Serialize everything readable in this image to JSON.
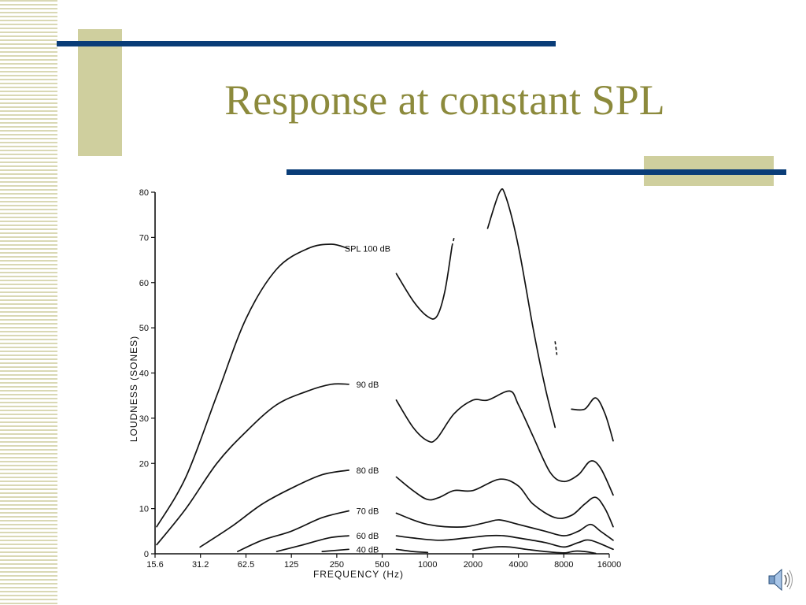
{
  "slide": {
    "title": "Response at constant SPL",
    "colors": {
      "title": "#8c8a3c",
      "rule": "#0a3d78",
      "accent_block": "#cfcf9e",
      "stripes": "#d9d8b4"
    },
    "icons": [
      "speaker-icon"
    ]
  },
  "chart_data": {
    "type": "line",
    "title": "",
    "xlabel": "FREQUENCY (Hz)",
    "ylabel": "LOUDNESS (SONES)",
    "x_scale": "log2",
    "x_ticks": [
      "15.6",
      "31.2",
      "62.5",
      "125",
      "250",
      "500",
      "1000",
      "2000",
      "4000",
      "8000",
      "16000"
    ],
    "x_tick_values": [
      15.6,
      31.2,
      62.5,
      125,
      250,
      500,
      1000,
      2000,
      4000,
      8000,
      16000
    ],
    "y_ticks": [
      "0",
      "10",
      "20",
      "30",
      "40",
      "50",
      "60",
      "70",
      "80"
    ],
    "ylim": [
      0,
      80
    ],
    "grid": false,
    "series": [
      {
        "name": "SPL 100 dB",
        "segments": [
          [
            [
              16,
              6
            ],
            [
              25,
              17
            ],
            [
              40,
              35
            ],
            [
              62.5,
              52
            ],
            [
              100,
              63
            ],
            [
              160,
              67.5
            ],
            [
              230,
              68.5
            ],
            [
              300,
              67.5
            ]
          ],
          [
            [
              620,
              62
            ],
            [
              800,
              56
            ],
            [
              1000,
              52.5
            ],
            [
              1150,
              52.5
            ],
            [
              1300,
              58
            ],
            [
              1450,
              68
            ]
          ],
          [
            [
              2500,
              72
            ],
            [
              3000,
              80
            ],
            [
              3300,
              79
            ],
            [
              4000,
              68
            ],
            [
              5000,
              50
            ],
            [
              6000,
              37
            ],
            [
              7000,
              28
            ]
          ],
          [
            [
              9000,
              32
            ],
            [
              11000,
              32
            ],
            [
              13000,
              34.5
            ],
            [
              15000,
              31
            ],
            [
              17000,
              25
            ]
          ]
        ],
        "dashed": [
          [
            [
              1450,
              68
            ],
            [
              1500,
              70
            ]
          ],
          [
            [
              7000,
              47
            ],
            [
              7200,
              44
            ]
          ]
        ]
      },
      {
        "name": "90 dB",
        "segments": [
          [
            [
              16,
              2
            ],
            [
              25,
              10
            ],
            [
              40,
              20
            ],
            [
              62.5,
              27
            ],
            [
              100,
              33
            ],
            [
              160,
              36
            ],
            [
              230,
              37.5
            ],
            [
              300,
              37.5
            ]
          ],
          [
            [
              620,
              34
            ],
            [
              800,
              28
            ],
            [
              1000,
              25
            ],
            [
              1150,
              25.5
            ],
            [
              1500,
              31
            ],
            [
              2000,
              34
            ],
            [
              2500,
              34
            ],
            [
              3500,
              36
            ],
            [
              4000,
              33
            ],
            [
              5000,
              26
            ],
            [
              6500,
              18
            ],
            [
              8000,
              16
            ],
            [
              10000,
              17.5
            ],
            [
              12000,
              20.5
            ],
            [
              14000,
              19
            ],
            [
              17000,
              13
            ]
          ]
        ]
      },
      {
        "name": "80 dB",
        "segments": [
          [
            [
              31,
              1.5
            ],
            [
              50,
              6
            ],
            [
              80,
              11
            ],
            [
              125,
              14.5
            ],
            [
              200,
              17.5
            ],
            [
              300,
              18.5
            ]
          ],
          [
            [
              620,
              17
            ],
            [
              800,
              14
            ],
            [
              1000,
              12
            ],
            [
              1200,
              12.5
            ],
            [
              1500,
              14
            ],
            [
              2000,
              14
            ],
            [
              3000,
              16.5
            ],
            [
              4000,
              15
            ],
            [
              5000,
              11
            ],
            [
              7000,
              8
            ],
            [
              9000,
              8.5
            ],
            [
              11000,
              11
            ],
            [
              13000,
              12.5
            ],
            [
              15000,
              10
            ],
            [
              17000,
              6
            ]
          ]
        ]
      },
      {
        "name": "70 dB",
        "segments": [
          [
            [
              55,
              0.5
            ],
            [
              80,
              3
            ],
            [
              125,
              5
            ],
            [
              200,
              8
            ],
            [
              300,
              9.5
            ]
          ],
          [
            [
              620,
              9
            ],
            [
              800,
              7.5
            ],
            [
              1000,
              6.5
            ],
            [
              1300,
              6
            ],
            [
              1800,
              6
            ],
            [
              2500,
              7
            ],
            [
              3000,
              7.5
            ],
            [
              4000,
              6.5
            ],
            [
              6000,
              5
            ],
            [
              8000,
              4
            ],
            [
              10000,
              5
            ],
            [
              12000,
              6.5
            ],
            [
              14000,
              5
            ],
            [
              17000,
              3
            ]
          ]
        ]
      },
      {
        "name": "60 dB",
        "segments": [
          [
            [
              100,
              0.5
            ],
            [
              150,
              2
            ],
            [
              220,
              3.5
            ],
            [
              300,
              4
            ]
          ],
          [
            [
              620,
              4
            ],
            [
              800,
              3.5
            ],
            [
              1200,
              3
            ],
            [
              1800,
              3.5
            ],
            [
              2500,
              4
            ],
            [
              3200,
              4
            ],
            [
              4000,
              3.5
            ],
            [
              6000,
              2.5
            ],
            [
              8000,
              1.5
            ],
            [
              10000,
              2.5
            ],
            [
              12000,
              3
            ],
            [
              17000,
              1
            ]
          ]
        ]
      },
      {
        "name": "40 dB",
        "segments": [
          [
            [
              200,
              0.5
            ],
            [
              300,
              1
            ]
          ],
          [
            [
              620,
              1
            ],
            [
              800,
              0.5
            ],
            [
              1000,
              0.3
            ]
          ],
          [
            [
              2000,
              0.8
            ],
            [
              2800,
              1.5
            ],
            [
              3500,
              1.5
            ],
            [
              4500,
              1
            ],
            [
              6000,
              0.5
            ],
            [
              8000,
              0.2
            ],
            [
              9500,
              0.6
            ],
            [
              11000,
              0.5
            ],
            [
              13000,
              0.1
            ]
          ]
        ]
      }
    ]
  }
}
